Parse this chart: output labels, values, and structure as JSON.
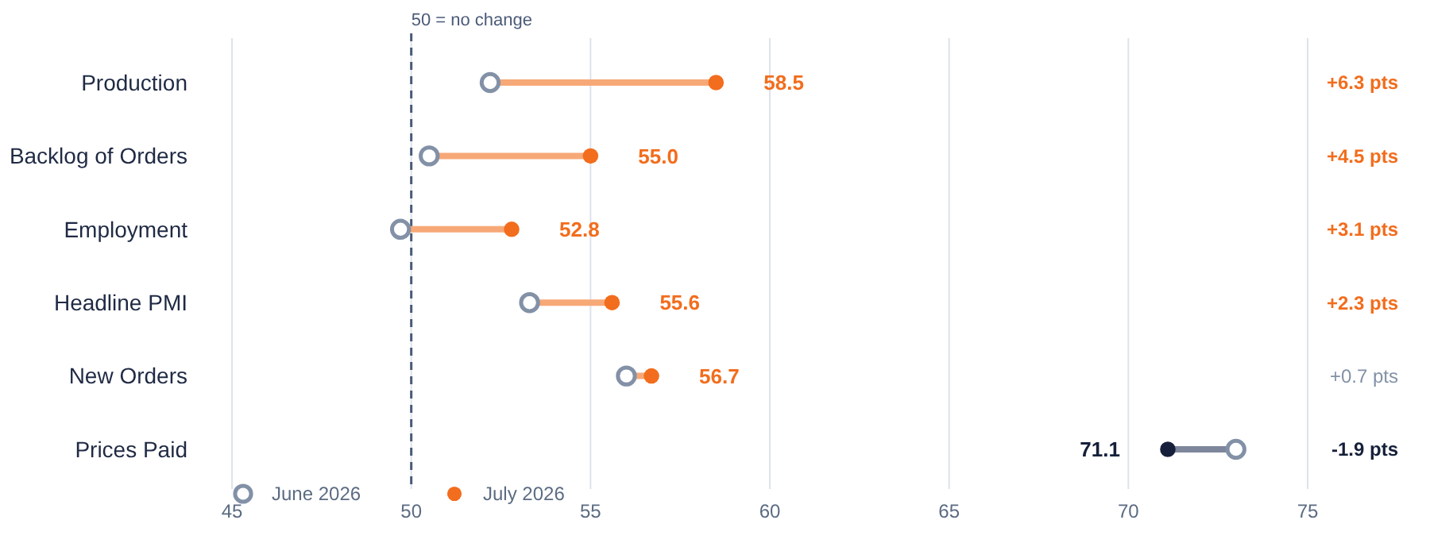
{
  "chart_data": {
    "type": "scatter",
    "orientation": "horizontal",
    "categories": [
      "Production",
      "Backlog of Orders",
      "Employment",
      "Headline PMI",
      "New Orders",
      "Prices Paid"
    ],
    "series": [
      {
        "name": "June 2026",
        "color": "#8391a7",
        "values": [
          52.2,
          50.5,
          49.7,
          53.3,
          56.0,
          73.0
        ]
      },
      {
        "name": "July 2026",
        "color": "#f26d1d",
        "colors": [
          "#f26d1d",
          "#f26d1d",
          "#f26d1d",
          "#f26d1d",
          "#f26d1d",
          "#16203a"
        ],
        "values": [
          58.5,
          55.0,
          52.8,
          55.6,
          56.7,
          71.1
        ],
        "value_labels": [
          "58.5",
          "55.0",
          "52.8",
          "55.6",
          "56.7",
          "71.1"
        ]
      }
    ],
    "xlim": [
      45,
      75
    ],
    "xticks": [
      45,
      50,
      55,
      60,
      65,
      70,
      75
    ],
    "grid": "x",
    "marker": "circle",
    "legend": "bottom left",
    "ref_lines": [
      {
        "axis": "x",
        "value": 50,
        "label": "50 = no change",
        "color": "#4a5a78",
        "line_style": "dashed"
      }
    ],
    "annotations": [
      "+6.3 pts",
      "+4.5 pts",
      "+3.1 pts",
      "+2.3 pts",
      "+0.7 pts",
      "-1.9 pts"
    ]
  }
}
